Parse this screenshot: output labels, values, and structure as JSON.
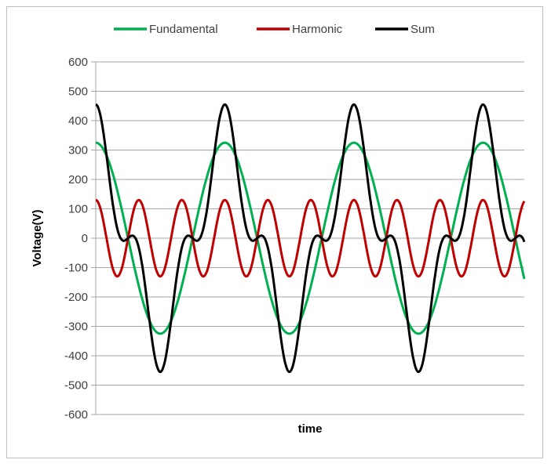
{
  "chart_data": {
    "type": "line",
    "title": "",
    "xlabel": "time",
    "ylabel": "Voltage(V)",
    "ylim": [
      -600,
      600
    ],
    "yticks": [
      "600",
      "500",
      "400",
      "300",
      "200",
      "100",
      "0",
      "-100",
      "-200",
      "-300",
      "-400",
      "-500",
      "-600"
    ],
    "grid": true,
    "legend": "top",
    "x_cycles_of_fundamental": [
      0,
      3.32
    ],
    "series": [
      {
        "name": "Fundamental",
        "color": "#00b050",
        "waveform": "cosine",
        "amplitude": 325,
        "harmonic_order": 1
      },
      {
        "name": "Harmonic",
        "color": "#c00000",
        "waveform": "cosine",
        "amplitude": 130,
        "harmonic_order": 3
      },
      {
        "name": "Sum",
        "color": "#000000",
        "waveform": "Fundamental + Harmonic",
        "peak": 455
      }
    ]
  }
}
